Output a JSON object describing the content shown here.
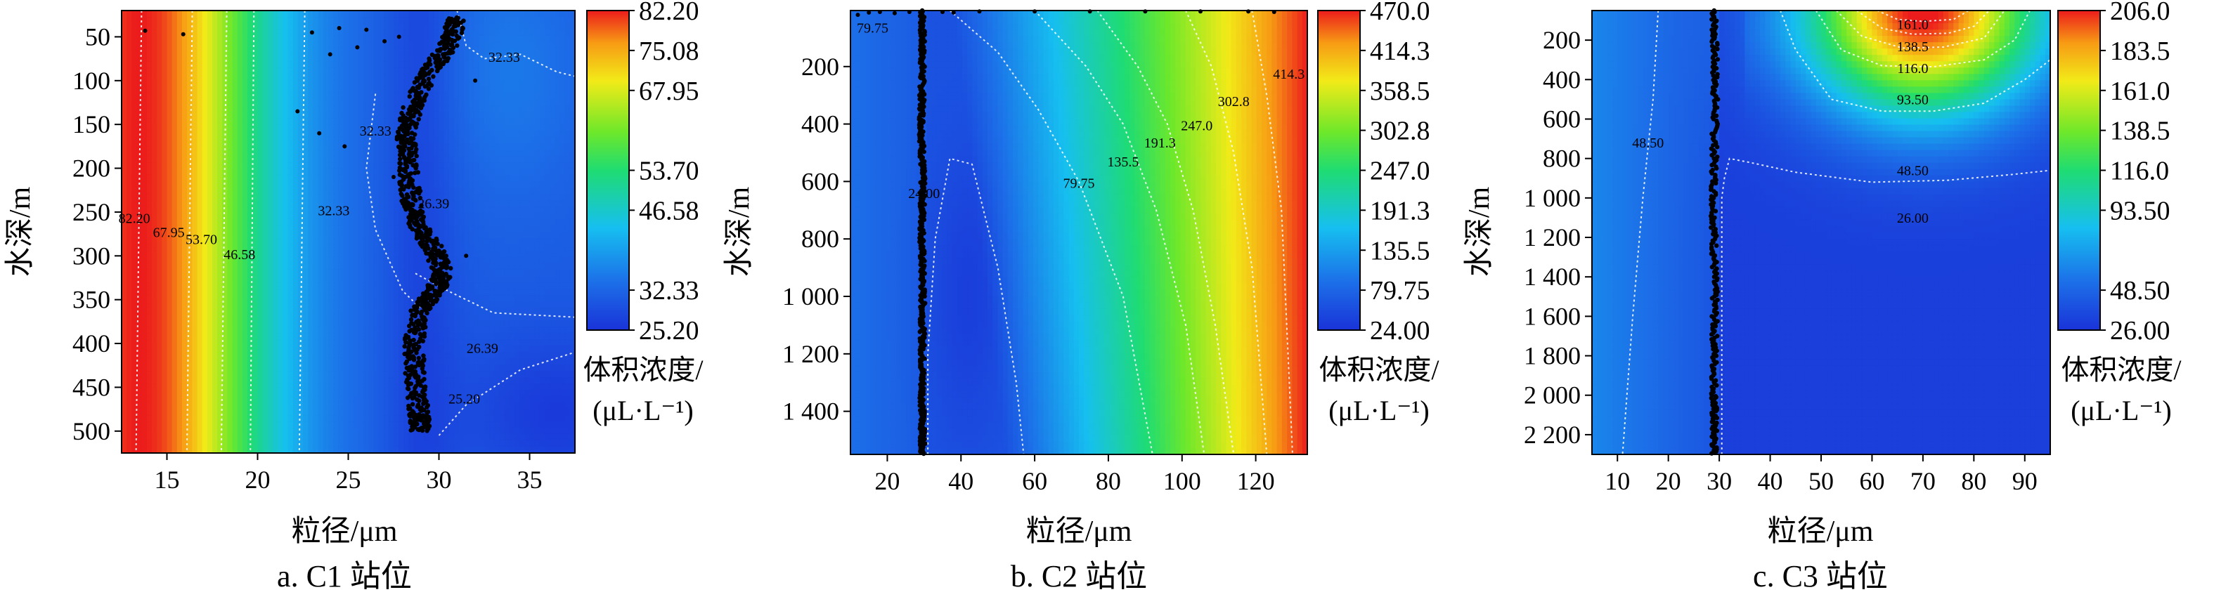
{
  "chart_data": [
    {
      "id": "c1",
      "type": "heatmap",
      "caption": "a. C1 站位",
      "xlabel": "粒径/μm",
      "ylabel": "水深/m",
      "xlim": [
        12.5,
        37.5
      ],
      "ylim": [
        20,
        525
      ],
      "y_reversed": true,
      "x_ticks": [
        15,
        20,
        25,
        30,
        35
      ],
      "y_ticks": [
        50,
        100,
        150,
        200,
        250,
        300,
        350,
        400,
        450,
        500
      ],
      "y_tick_labels": [
        "50",
        "100",
        "150",
        "200",
        "250",
        "300",
        "350",
        "400",
        "450",
        "500"
      ],
      "colorbar": {
        "min": 25.2,
        "max": 82.2,
        "ticks": [
          82.2,
          75.08,
          67.95,
          53.7,
          46.58,
          32.33,
          25.2
        ],
        "tick_labels": [
          "82.20",
          "75.08",
          "67.95",
          "53.70",
          "46.58",
          "32.33",
          "25.20"
        ],
        "label_lines": [
          "体积浓度/",
          "(μL·L⁻¹)"
        ]
      },
      "color_model": {
        "left_peak_x": 13.5,
        "left_width": 6.8,
        "hump_x": 34,
        "hump_y": 90,
        "hump_wx": 4,
        "hump_wy": 150,
        "hump_amp": 4,
        "min_x": 36.5,
        "min_y": 480,
        "min_wx": 5,
        "min_wy": 90,
        "min_amp": -6
      },
      "contour_lines": [
        {
          "value": 82.2,
          "points": [
            [
              13.6,
              20
            ],
            [
              13.3,
              525
            ]
          ]
        },
        {
          "value": 67.95,
          "points": [
            [
              16.4,
              20
            ],
            [
              16.1,
              525
            ]
          ]
        },
        {
          "value": 53.7,
          "points": [
            [
              18.3,
              20
            ],
            [
              18.0,
              525
            ]
          ]
        },
        {
          "value": 46.58,
          "points": [
            [
              19.8,
              20
            ],
            [
              19.6,
              525
            ]
          ]
        },
        {
          "value": 32.33,
          "points": [
            [
              22.6,
              20
            ],
            [
              22.3,
              525
            ]
          ]
        },
        {
          "value": 32.33,
          "points": [
            [
              31.0,
              20
            ],
            [
              31.5,
              60
            ],
            [
              32.5,
              75
            ],
            [
              34.5,
              70
            ],
            [
              36.5,
              90
            ],
            [
              37.5,
              95
            ]
          ]
        },
        {
          "value": 32.33,
          "points": [
            [
              26.5,
              115
            ],
            [
              26.0,
              200
            ],
            [
              26.5,
              270
            ],
            [
              28.0,
              340
            ],
            [
              29.0,
              360
            ]
          ]
        },
        {
          "value": 26.39,
          "points": [
            [
              28.7,
              320
            ],
            [
              30.5,
              340
            ],
            [
              33.0,
              365
            ],
            [
              37.5,
              370
            ]
          ]
        },
        {
          "value": 25.2,
          "points": [
            [
              30.0,
              505
            ],
            [
              31.5,
              470
            ],
            [
              34.5,
              430
            ],
            [
              37.5,
              410
            ]
          ]
        }
      ],
      "contour_labels": [
        {
          "text": "32.33",
          "x": 33.6,
          "y": 73
        },
        {
          "text": "82.20",
          "x": 13.2,
          "y": 257
        },
        {
          "text": "67.95",
          "x": 15.1,
          "y": 273
        },
        {
          "text": "53.70",
          "x": 16.9,
          "y": 281
        },
        {
          "text": "46.58",
          "x": 19.0,
          "y": 298
        },
        {
          "text": "32.33",
          "x": 24.2,
          "y": 248
        },
        {
          "text": "26.39",
          "x": 29.7,
          "y": 240
        },
        {
          "text": "32.33",
          "x": 26.5,
          "y": 157
        },
        {
          "text": "26.39",
          "x": 32.4,
          "y": 405
        },
        {
          "text": "25.20",
          "x": 31.4,
          "y": 463
        }
      ],
      "scatter": {
        "trend": [
          [
            31,
            28
          ],
          [
            30.5,
            60
          ],
          [
            29.5,
            90
          ],
          [
            28.5,
            130
          ],
          [
            28.2,
            165
          ],
          [
            28.3,
            200
          ],
          [
            28.5,
            240
          ],
          [
            29.0,
            270
          ],
          [
            29.8,
            295
          ],
          [
            30.2,
            320
          ],
          [
            29.8,
            340
          ],
          [
            29.0,
            360
          ],
          [
            28.6,
            400
          ],
          [
            28.7,
            440
          ],
          [
            28.9,
            480
          ],
          [
            29.0,
            500
          ]
        ],
        "x_jitter": 0.55,
        "extra_points": [
          [
            23.0,
            45
          ],
          [
            24.5,
            40
          ],
          [
            26.0,
            42
          ],
          [
            27.0,
            55
          ],
          [
            25.5,
            62
          ],
          [
            24.0,
            70
          ],
          [
            27.8,
            50
          ],
          [
            22.2,
            135
          ],
          [
            23.4,
            160
          ],
          [
            24.8,
            175
          ],
          [
            15.9,
            47
          ],
          [
            13.8,
            43
          ],
          [
            32.0,
            100
          ],
          [
            31.5,
            300
          ],
          [
            27.5,
            210
          ]
        ]
      }
    },
    {
      "id": "c2",
      "type": "heatmap",
      "caption": "b. C2 站位",
      "xlabel": "粒径/μm",
      "ylabel": "水深/m",
      "xlim": [
        10,
        134
      ],
      "ylim": [
        5,
        1550
      ],
      "y_reversed": true,
      "x_ticks": [
        20,
        40,
        60,
        80,
        100,
        120
      ],
      "y_ticks": [
        200,
        400,
        600,
        800,
        1000,
        1200,
        1400
      ],
      "y_tick_labels": [
        "200",
        "400",
        "600",
        "800",
        "1 000",
        "1 200",
        "1 400"
      ],
      "colorbar": {
        "min": 24.0,
        "max": 470.0,
        "ticks": [
          470.0,
          414.3,
          358.5,
          302.8,
          247.0,
          191.3,
          135.5,
          79.75,
          24.0
        ],
        "tick_labels": [
          "470.0",
          "414.3",
          "358.5",
          "302.8",
          "247.0",
          "191.3",
          "135.5",
          "79.75",
          "24.00"
        ],
        "label_lines": [
          "体积浓度/",
          "(μL·L⁻¹)"
        ]
      },
      "contour_lines": [
        {
          "value": 24.0,
          "points": [
            [
              31,
              1550
            ],
            [
              31,
              1200
            ],
            [
              33,
              800
            ],
            [
              37,
              520
            ],
            [
              43,
              540
            ],
            [
              50,
              900
            ],
            [
              55,
              1300
            ],
            [
              57,
              1550
            ]
          ]
        },
        {
          "value": 79.75,
          "points": [
            [
              37,
              5
            ],
            [
              50,
              150
            ],
            [
              61,
              350
            ],
            [
              72,
              600
            ],
            [
              84,
              1000
            ],
            [
              92,
              1550
            ]
          ]
        },
        {
          "value": 135.5,
          "points": [
            [
              60,
              5
            ],
            [
              74,
              200
            ],
            [
              84,
              400
            ],
            [
              93,
              700
            ],
            [
              101,
              1100
            ],
            [
              106,
              1550
            ]
          ]
        },
        {
          "value": 191.3,
          "points": [
            [
              77,
              5
            ],
            [
              88,
              200
            ],
            [
              96,
              400
            ],
            [
              103,
              700
            ],
            [
              109,
              1100
            ],
            [
              114,
              1550
            ]
          ]
        },
        {
          "value": 302.8,
          "points": [
            [
              101,
              5
            ],
            [
              108,
              200
            ],
            [
              114,
              500
            ],
            [
              119,
              900
            ],
            [
              123,
              1550
            ]
          ]
        },
        {
          "value": 414.3,
          "points": [
            [
              119,
              5
            ],
            [
              123,
              300
            ],
            [
              127,
              700
            ],
            [
              130,
              1550
            ]
          ]
        }
      ],
      "contour_labels": [
        {
          "text": "79.75",
          "x": 16,
          "y": 65
        },
        {
          "text": "24.00",
          "x": 30,
          "y": 640
        },
        {
          "text": "79.75",
          "x": 72,
          "y": 605
        },
        {
          "text": "135.5",
          "x": 84,
          "y": 530
        },
        {
          "text": "191.3",
          "x": 94,
          "y": 465
        },
        {
          "text": "247.0",
          "x": 104,
          "y": 405
        },
        {
          "text": "302.8",
          "x": 114,
          "y": 320
        },
        {
          "text": "414.3",
          "x": 129,
          "y": 225
        }
      ],
      "scatter": {
        "trend": [
          [
            29.5,
            5
          ],
          [
            29.5,
            200
          ],
          [
            29.3,
            400
          ],
          [
            29.6,
            600
          ],
          [
            29.4,
            800
          ],
          [
            29.6,
            1000
          ],
          [
            29.5,
            1200
          ],
          [
            29.5,
            1400
          ],
          [
            29.6,
            1550
          ]
        ],
        "x_jitter": 0.7,
        "extra_points": [
          [
            15,
            12
          ],
          [
            18,
            10
          ],
          [
            22,
            14
          ],
          [
            26,
            10
          ],
          [
            35,
            10
          ],
          [
            38,
            12
          ],
          [
            12,
            20
          ],
          [
            45,
            8
          ],
          [
            60,
            8
          ],
          [
            75,
            8
          ],
          [
            90,
            8
          ],
          [
            105,
            8
          ],
          [
            118,
            8
          ],
          [
            125,
            10
          ]
        ]
      }
    },
    {
      "id": "c3",
      "type": "heatmap",
      "caption": "c. C3 站位",
      "xlabel": "粒径/μm",
      "ylabel": "水深/m",
      "xlim": [
        5,
        95
      ],
      "ylim": [
        50,
        2300
      ],
      "y_reversed": true,
      "x_ticks": [
        10,
        20,
        30,
        40,
        50,
        60,
        70,
        80,
        90
      ],
      "y_ticks": [
        200,
        400,
        600,
        800,
        1000,
        1200,
        1400,
        1600,
        1800,
        2000,
        2200
      ],
      "y_tick_labels": [
        "200",
        "400",
        "600",
        "800",
        "1 000",
        "1 200",
        "1 400",
        "1 600",
        "1 800",
        "2 000",
        "2 200"
      ],
      "colorbar": {
        "min": 26.0,
        "max": 206.0,
        "ticks": [
          206.0,
          183.5,
          161.0,
          138.5,
          116.0,
          93.5,
          48.5,
          26.0
        ],
        "tick_labels": [
          "206.0",
          "183.5",
          "161.0",
          "138.5",
          "116.0",
          "93.50",
          "48.50",
          "26.00"
        ],
        "label_lines": [
          "体积浓度/",
          "(μL·L⁻¹)"
        ]
      },
      "contour_lines": [
        {
          "value": 48.5,
          "points": [
            [
              18,
              50
            ],
            [
              17,
              500
            ],
            [
              15,
              1000
            ],
            [
              13,
              1600
            ],
            [
              11,
              2300
            ]
          ]
        },
        {
          "value": 26.0,
          "points": [
            [
              30.5,
              2300
            ],
            [
              30.5,
              1000
            ],
            [
              31,
              900
            ],
            [
              32,
              800
            ],
            [
              36,
              820
            ],
            [
              45,
              870
            ],
            [
              60,
              920
            ],
            [
              75,
              910
            ],
            [
              88,
              880
            ],
            [
              95,
              860
            ]
          ]
        },
        {
          "value": 48.5,
          "points": [
            [
              42,
              50
            ],
            [
              45,
              250
            ],
            [
              52,
              500
            ],
            [
              62,
              560
            ],
            [
              72,
              560
            ],
            [
              82,
              520
            ],
            [
              90,
              400
            ],
            [
              95,
              300
            ]
          ]
        },
        {
          "value": 93.5,
          "points": [
            [
              49,
              50
            ],
            [
              54,
              250
            ],
            [
              62,
              330
            ],
            [
              72,
              335
            ],
            [
              82,
              300
            ],
            [
              88,
              200
            ],
            [
              91,
              50
            ]
          ]
        },
        {
          "value": 116.0,
          "points": [
            [
              53,
              50
            ],
            [
              58,
              180
            ],
            [
              66,
              240
            ],
            [
              74,
              235
            ],
            [
              82,
              190
            ],
            [
              86,
              50
            ]
          ]
        },
        {
          "value": 138.5,
          "points": [
            [
              57,
              50
            ],
            [
              62,
              140
            ],
            [
              68,
              170
            ],
            [
              75,
              165
            ],
            [
              80,
              130
            ],
            [
              83,
              50
            ]
          ]
        },
        {
          "value": 161.0,
          "points": [
            [
              61,
              50
            ],
            [
              65,
              95
            ],
            [
              70,
              105
            ],
            [
              76,
              95
            ],
            [
              79,
              50
            ]
          ]
        }
      ],
      "contour_labels": [
        {
          "text": "48.50",
          "x": 16,
          "y": 720
        },
        {
          "text": "161.0",
          "x": 68,
          "y": 120
        },
        {
          "text": "138.5",
          "x": 68,
          "y": 232
        },
        {
          "text": "116.0",
          "x": 68,
          "y": 342
        },
        {
          "text": "93.50",
          "x": 68,
          "y": 500
        },
        {
          "text": "48.50",
          "x": 68,
          "y": 860
        },
        {
          "text": "26.00",
          "x": 68,
          "y": 1100
        }
      ],
      "scatter": {
        "trend": [
          [
            29,
            50
          ],
          [
            29.2,
            500
          ],
          [
            28.9,
            1000
          ],
          [
            29.1,
            1500
          ],
          [
            29.0,
            2000
          ],
          [
            29.0,
            2300
          ]
        ],
        "x_jitter": 0.6,
        "extra_points": []
      }
    }
  ]
}
